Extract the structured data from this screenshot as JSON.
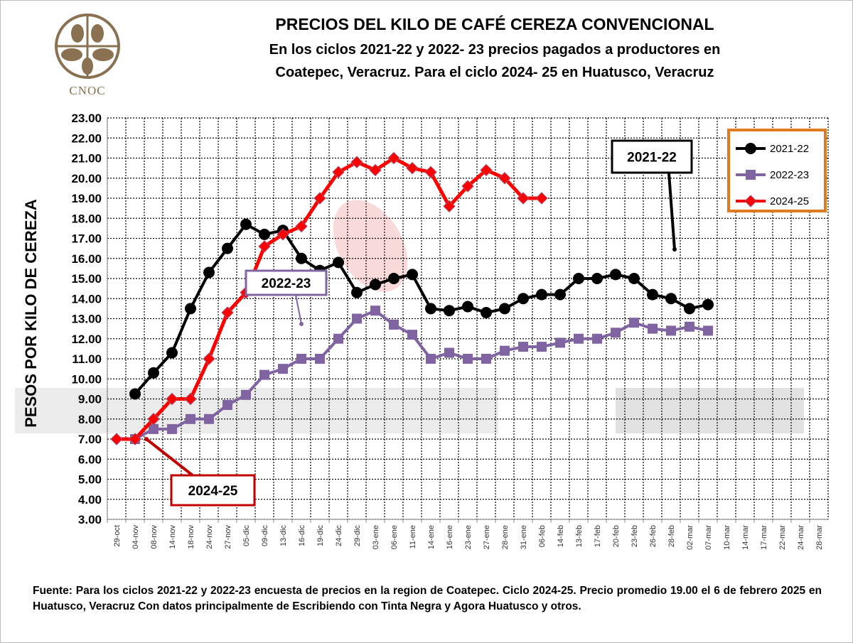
{
  "logo": {
    "text": "CNOC",
    "color": "#8a7152"
  },
  "chart_data": {
    "type": "line",
    "title": "PRECIOS DEL KILO DE CAFÉ CEREZA CONVENCIONAL",
    "subtitle_1": "En los ciclos 2021-22 y 2022- 23 precios pagados a productores en",
    "subtitle_2": "Coatepec, Veracruz. Para el ciclo 2024- 25 en Huatusco, Veracruz",
    "ylabel": "PESOS POR KILO DE CEREZA",
    "xlabel": "",
    "ylim": [
      3,
      23
    ],
    "yticks": [
      "3.00",
      "4.00",
      "5.00",
      "6.00",
      "7.00",
      "8.00",
      "9.00",
      "10.00",
      "11.00",
      "12.00",
      "13.00",
      "14.00",
      "15.00",
      "16.00",
      "17.00",
      "18.00",
      "19.00",
      "20.00",
      "21.00",
      "22.00",
      "23.00"
    ],
    "grid": true,
    "legend_position": "top-right",
    "categories": [
      "29-oct",
      "04-nov",
      "08-nov",
      "14-nov",
      "18-nov",
      "24-nov",
      "27-nov",
      "05-dic",
      "09-dic",
      "13-dic",
      "16-dic",
      "19-dic",
      "24-dic",
      "29-dic",
      "03-ene",
      "06-ene",
      "11-ene",
      "14-ene",
      "16-ene",
      "23-ene",
      "27-ene",
      "28-ene",
      "31-ene",
      "06-feb",
      "14-feb",
      "13-feb",
      "17-feb",
      "20-feb",
      "23-feb",
      "26-feb",
      "28-feb",
      "02-mar",
      "07-mar",
      "10-mar",
      "14-mar",
      "17-mar",
      "22-mar",
      "24-mar",
      "28-mar"
    ],
    "series": [
      {
        "name": "2021-22",
        "color": "#000000",
        "marker": "circle",
        "values": [
          null,
          9.25,
          10.3,
          11.3,
          13.5,
          15.3,
          16.5,
          17.7,
          17.2,
          17.4,
          16.0,
          15.4,
          15.8,
          14.3,
          14.7,
          15.0,
          15.2,
          13.5,
          13.4,
          13.6,
          13.3,
          13.5,
          14.0,
          14.2,
          14.2,
          15.0,
          15.0,
          15.2,
          15.0,
          14.2,
          14.0,
          13.5,
          13.7,
          null,
          null,
          null,
          null,
          null,
          null
        ]
      },
      {
        "name": "2022-23",
        "color": "#8064a2",
        "marker": "square",
        "values": [
          null,
          7.0,
          7.5,
          7.5,
          8.0,
          8.0,
          8.7,
          9.2,
          10.2,
          10.5,
          11.0,
          11.0,
          12.0,
          13.0,
          13.4,
          12.7,
          12.2,
          11.0,
          11.3,
          11.0,
          11.0,
          11.4,
          11.6,
          11.6,
          11.8,
          12.0,
          12.0,
          12.3,
          12.8,
          12.5,
          12.4,
          12.6,
          12.4,
          null,
          null,
          null,
          null,
          null,
          null
        ]
      },
      {
        "name": "2024-25",
        "color": "#ff0000",
        "marker": "diamond",
        "values": [
          7.0,
          7.0,
          8.0,
          9.0,
          9.0,
          11.0,
          13.3,
          14.3,
          16.6,
          17.2,
          17.6,
          19.0,
          20.3,
          20.8,
          20.4,
          21.0,
          20.5,
          20.3,
          18.6,
          19.6,
          20.4,
          20.0,
          19.0,
          19.0,
          null,
          null,
          null,
          null,
          null,
          null,
          null,
          null,
          null,
          null,
          null,
          null,
          null,
          null,
          null
        ]
      }
    ],
    "annotations": [
      {
        "text": "2021-22",
        "color": "#000000"
      },
      {
        "text": "2022-23",
        "color": "#8064a2"
      },
      {
        "text": "2024-25",
        "color": "#c00000"
      }
    ]
  },
  "footnote": "Fuente: Para los ciclos 2021-22 y 2022-23 encuesta de precios en la region de Coatepec. Ciclo 2024-25. Precio promedio 19.00 el 6 de febrero 2025 en Huatusco, Veracruz Con datos principalmente de Escribiendo con Tinta Negra y Agora Huatusco y otros."
}
